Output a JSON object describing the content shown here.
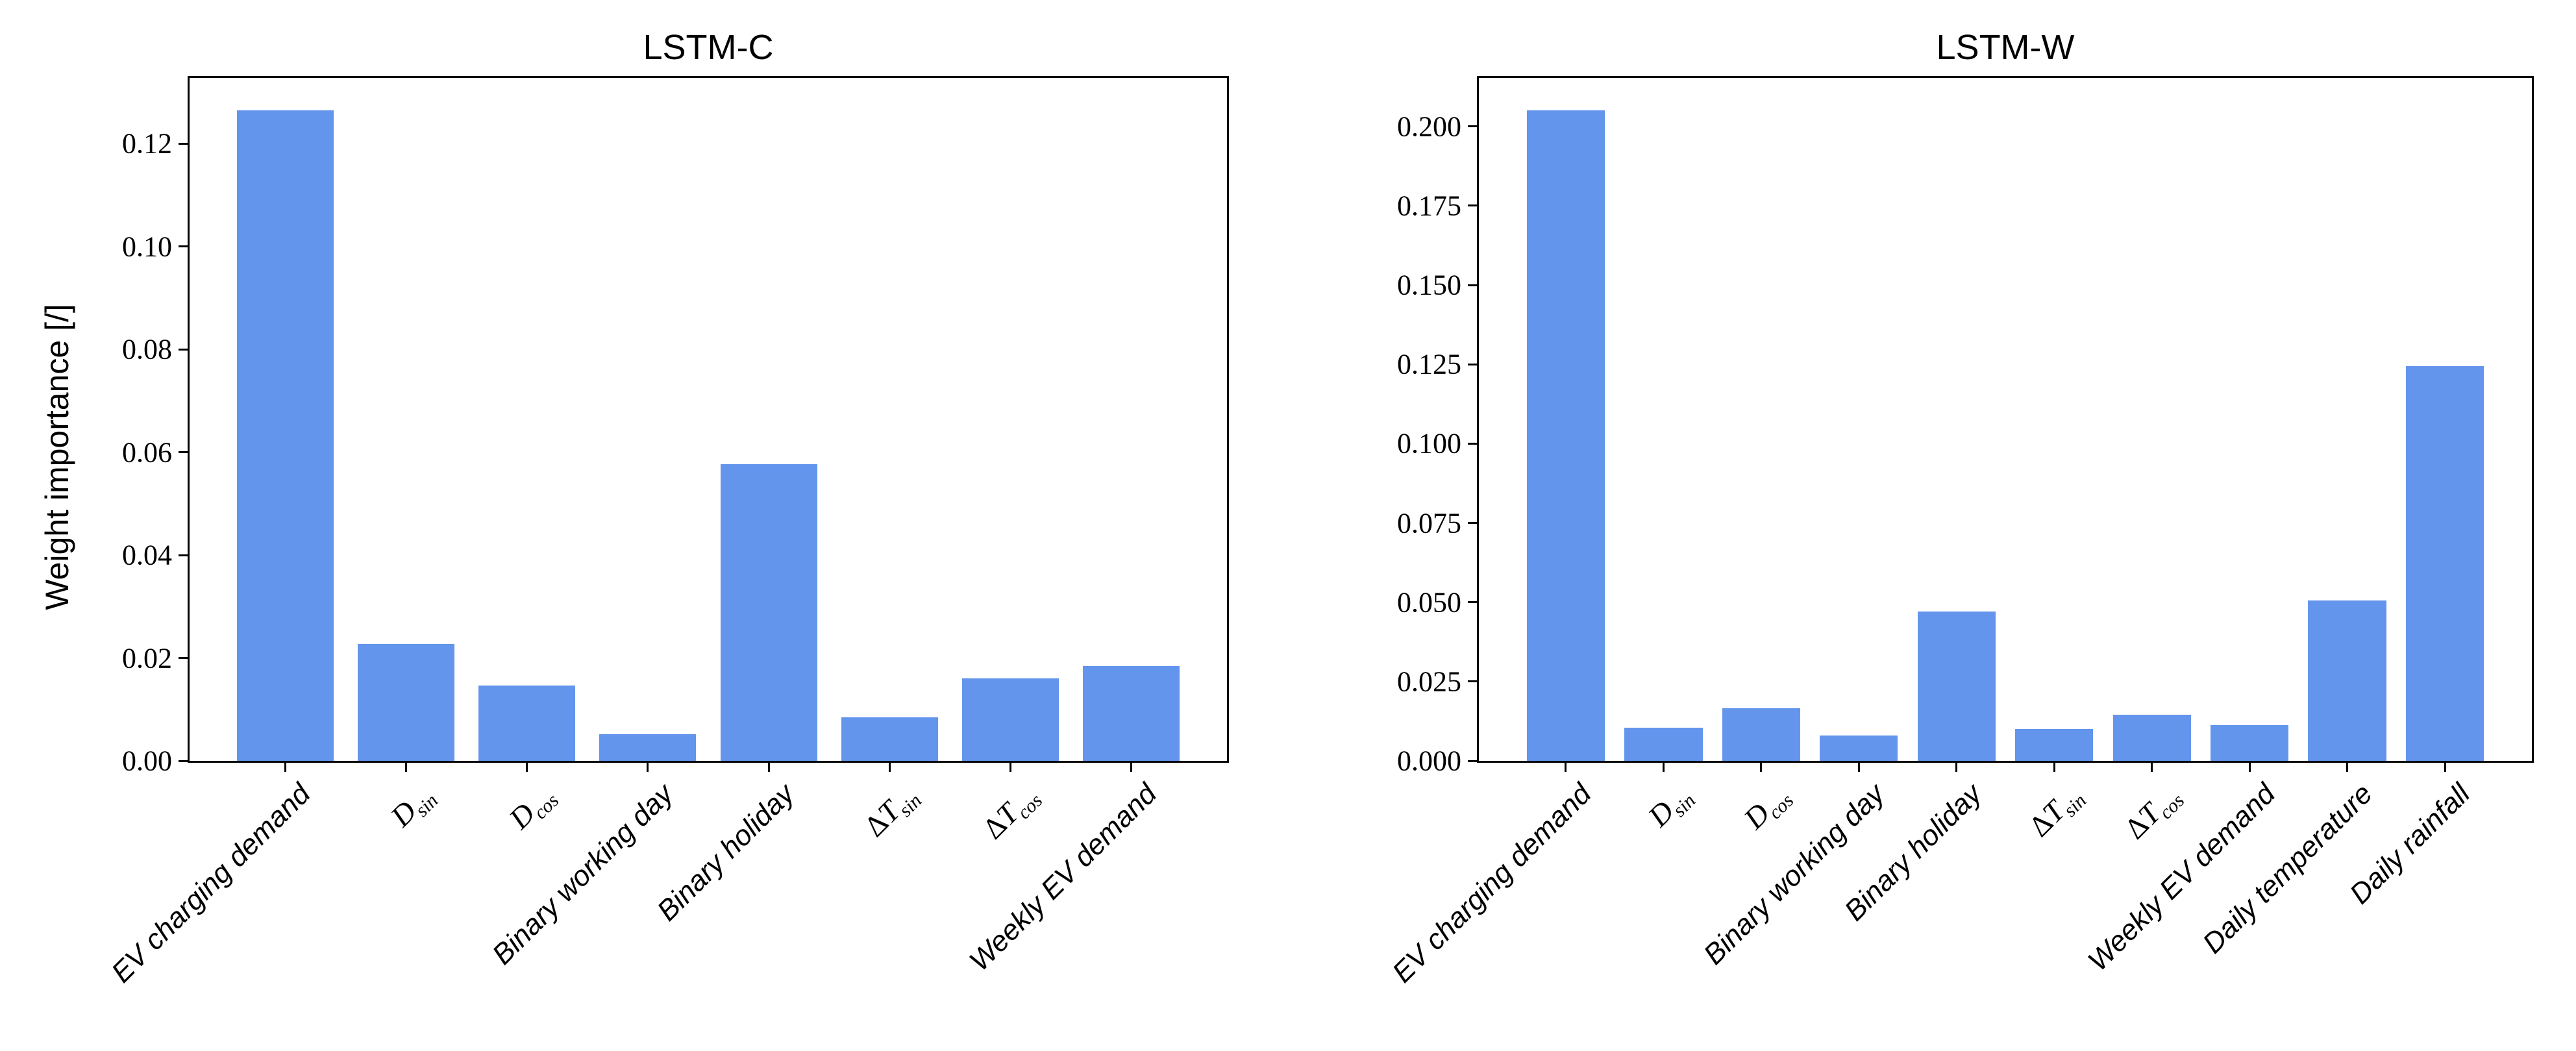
{
  "figure": {
    "background": "#ffffff",
    "bar_color": "#6495ed",
    "axis_color": "#000000"
  },
  "chart_data": [
    {
      "type": "bar",
      "title": "LSTM-C",
      "ylabel": "Weight importance [/]",
      "xlabel": "",
      "grid": false,
      "legend": null,
      "bar_color": "#6495ed",
      "categories": [
        "EV charging demand",
        "$D_{sin}$",
        "$D_{cos}$",
        "Binary working day",
        "Binary holiday",
        "$\\Delta T_{sin}$",
        "$\\Delta T_{cos}$",
        "Weekly EV demand"
      ],
      "values": [
        0.1265,
        0.0227,
        0.0146,
        0.0052,
        0.0577,
        0.0085,
        0.016,
        0.0184
      ],
      "ylim": [
        0,
        0.1328
      ],
      "yticks": [
        0.0,
        0.02,
        0.04,
        0.06,
        0.08,
        0.1,
        0.12
      ],
      "ytick_labels": [
        "0.00",
        "0.02",
        "0.04",
        "0.06",
        "0.08",
        "0.10",
        "0.12"
      ]
    },
    {
      "type": "bar",
      "title": "LSTM-W",
      "ylabel": "",
      "xlabel": "",
      "grid": false,
      "legend": null,
      "bar_color": "#6495ed",
      "categories": [
        "EV charging demand",
        "$D_{sin}$",
        "$D_{cos}$",
        "Binary working day",
        "Binary holiday",
        "$\\Delta T_{sin}$",
        "$\\Delta T_{cos}$",
        "Weekly EV demand",
        "Daily temperature",
        "Daily rainfall"
      ],
      "values": [
        0.205,
        0.0105,
        0.0165,
        0.008,
        0.047,
        0.01,
        0.0145,
        0.0113,
        0.0505,
        0.1245
      ],
      "ylim": [
        0,
        0.2153
      ],
      "yticks": [
        0.0,
        0.025,
        0.05,
        0.075,
        0.1,
        0.125,
        0.15,
        0.175,
        0.2
      ],
      "ytick_labels": [
        "0.000",
        "0.025",
        "0.050",
        "0.075",
        "0.100",
        "0.125",
        "0.150",
        "0.175",
        "0.200"
      ]
    }
  ]
}
